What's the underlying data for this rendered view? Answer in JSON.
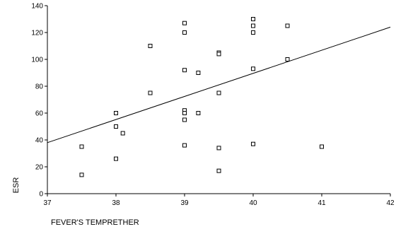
{
  "chart_data": {
    "type": "scatter",
    "title": "",
    "xlabel": "FEVER'S TEMPRETHER",
    "ylabel": "ESR",
    "xlim": [
      37,
      42
    ],
    "ylim": [
      0,
      140
    ],
    "x_ticks": [
      37,
      38,
      39,
      40,
      41,
      42
    ],
    "y_ticks": [
      0,
      20,
      40,
      60,
      80,
      100,
      120,
      140
    ],
    "grid": false,
    "legend": "none",
    "marker": "hollow-square",
    "color": "#000000",
    "points": [
      {
        "x": 37.5,
        "y": 35
      },
      {
        "x": 37.5,
        "y": 14
      },
      {
        "x": 38.0,
        "y": 60
      },
      {
        "x": 38.0,
        "y": 50
      },
      {
        "x": 38.1,
        "y": 45
      },
      {
        "x": 38.0,
        "y": 26
      },
      {
        "x": 38.5,
        "y": 110
      },
      {
        "x": 38.5,
        "y": 75
      },
      {
        "x": 39.0,
        "y": 127
      },
      {
        "x": 39.0,
        "y": 120
      },
      {
        "x": 39.0,
        "y": 120
      },
      {
        "x": 39.0,
        "y": 92
      },
      {
        "x": 39.0,
        "y": 62
      },
      {
        "x": 39.0,
        "y": 60
      },
      {
        "x": 39.0,
        "y": 55
      },
      {
        "x": 39.0,
        "y": 36
      },
      {
        "x": 39.2,
        "y": 90
      },
      {
        "x": 39.2,
        "y": 60
      },
      {
        "x": 39.5,
        "y": 105
      },
      {
        "x": 39.5,
        "y": 104
      },
      {
        "x": 39.5,
        "y": 75
      },
      {
        "x": 39.5,
        "y": 34
      },
      {
        "x": 39.5,
        "y": 17
      },
      {
        "x": 40.0,
        "y": 130
      },
      {
        "x": 40.0,
        "y": 125
      },
      {
        "x": 40.0,
        "y": 120
      },
      {
        "x": 40.0,
        "y": 93
      },
      {
        "x": 40.0,
        "y": 37
      },
      {
        "x": 40.5,
        "y": 125
      },
      {
        "x": 40.5,
        "y": 100
      },
      {
        "x": 41.0,
        "y": 35
      }
    ],
    "fit_line": {
      "x": [
        37,
        42
      ],
      "y": [
        38,
        124
      ]
    }
  }
}
